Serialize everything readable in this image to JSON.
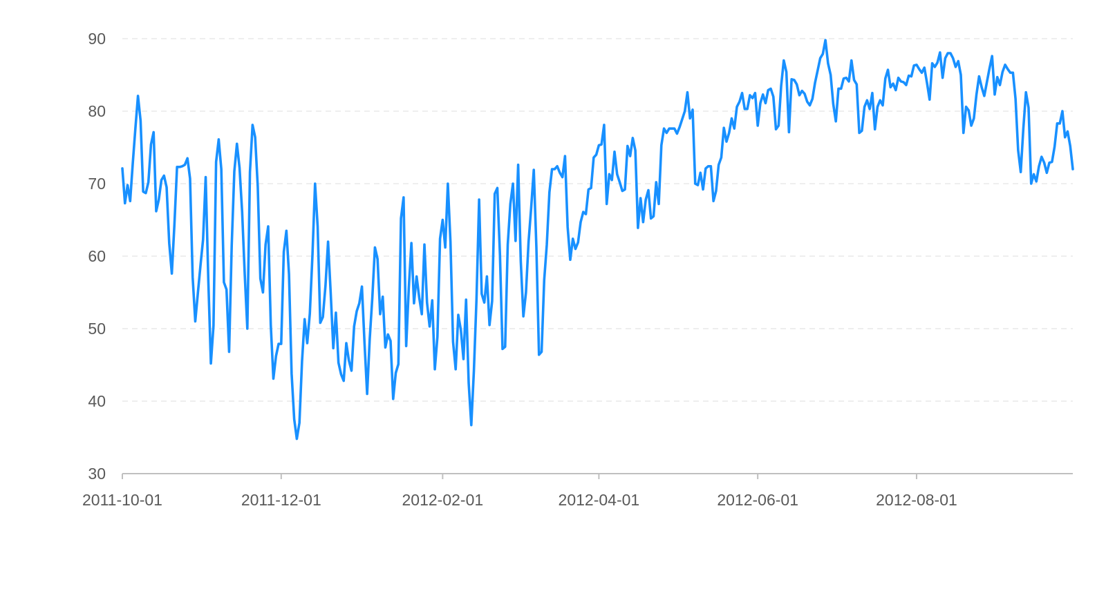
{
  "chart_data": {
    "type": "line",
    "title": "",
    "xlabel": "",
    "ylabel": "",
    "ylim": [
      30,
      90
    ],
    "xlim": [
      "2011-10-01",
      "2012-09-30"
    ],
    "y_ticks": [
      30,
      40,
      50,
      60,
      70,
      80,
      90
    ],
    "x_ticks": [
      "2011-10-01",
      "2011-12-01",
      "2012-02-01",
      "2012-04-01",
      "2012-06-01",
      "2012-08-01"
    ],
    "grid": "horizontal dashed",
    "legend": "none",
    "line_color": "#1890ff",
    "x_start": "2011-10-01",
    "x_step": "1 day",
    "y": [
      72.1,
      67.3,
      69.8,
      67.6,
      72.8,
      77.6,
      82.1,
      78.7,
      68.9,
      68.7,
      70.2,
      75.4,
      77.1,
      66.2,
      67.8,
      70.5,
      71.1,
      69.5,
      61.8,
      57.6,
      64.4,
      72.3,
      72.3,
      72.4,
      72.6,
      73.5,
      70.7,
      57.1,
      51.0,
      54.9,
      58.7,
      62.3,
      70.9,
      56.8,
      45.2,
      50.4,
      73.0,
      76.1,
      72.0,
      56.4,
      55.4,
      46.8,
      61.5,
      71.7,
      75.5,
      72.2,
      66.1,
      57.5,
      50.0,
      71.6,
      78.1,
      76.4,
      69.6,
      56.9,
      55.0,
      61.6,
      64.1,
      50.5,
      43.1,
      46.2,
      47.9,
      47.9,
      60.6,
      63.5,
      57.5,
      43.8,
      37.5,
      34.8,
      37.0,
      45.5,
      51.3,
      48.0,
      52.1,
      60.1,
      70.0,
      64.1,
      50.8,
      51.6,
      55.9,
      62.0,
      55.0,
      47.3,
      52.2,
      45.3,
      43.7,
      42.8,
      48.0,
      45.6,
      44.2,
      50.3,
      52.4,
      53.5,
      55.8,
      48.0,
      41.0,
      48.6,
      54.3,
      61.2,
      59.6,
      52.0,
      54.4,
      47.4,
      49.2,
      48.3,
      40.3,
      43.9,
      45.1,
      65.2,
      68.1,
      47.6,
      55.6,
      61.8,
      53.5,
      57.2,
      54.3,
      52.0,
      61.6,
      53.6,
      50.3,
      53.9,
      44.4,
      48.9,
      62.4,
      65.0,
      61.2,
      70.0,
      62.0,
      48.2,
      44.4,
      51.9,
      49.8,
      45.8,
      54.0,
      42.5,
      36.7,
      44.2,
      54.1,
      67.8,
      54.8,
      53.6,
      57.2,
      50.5,
      53.8,
      68.6,
      69.4,
      60.3,
      47.2,
      47.5,
      61.6,
      67.2,
      70.0,
      62.1,
      72.6,
      59.3,
      51.7,
      55.0,
      62.0,
      66.7,
      71.9,
      61.2,
      46.4,
      46.8,
      56.7,
      61.6,
      68.8,
      72.0,
      72.0,
      72.4,
      71.5,
      70.9,
      73.8,
      64.0,
      59.5,
      62.4,
      61.0,
      61.9,
      64.7,
      66.1,
      65.8,
      69.2,
      69.4,
      73.6,
      74.0,
      75.3,
      75.4,
      78.1,
      67.2,
      71.3,
      70.5,
      74.4,
      71.3,
      70.2,
      69.0,
      69.2,
      75.2,
      73.8,
      76.3,
      74.6,
      63.9,
      68.0,
      64.7,
      67.8,
      69.1,
      65.2,
      65.5,
      70.2,
      67.2,
      75.3,
      77.6,
      77.0,
      77.6,
      77.6,
      77.6,
      76.9,
      77.8,
      78.9,
      80.0,
      82.6,
      79.0,
      80.2,
      70.0,
      69.8,
      71.5,
      69.2,
      72.1,
      72.4,
      72.4,
      67.6,
      69.0,
      72.6,
      73.6,
      77.7,
      75.8,
      77.0,
      79.0,
      77.6,
      80.6,
      81.3,
      82.5,
      80.3,
      80.3,
      82.2,
      81.8,
      82.5,
      78.0,
      81.1,
      82.3,
      81.1,
      82.9,
      83.1,
      82.0,
      77.5,
      78.0,
      83.5,
      87.0,
      85.4,
      77.1,
      84.4,
      84.3,
      83.7,
      82.2,
      82.8,
      82.4,
      81.3,
      80.8,
      81.7,
      83.9,
      85.6,
      87.3,
      87.9,
      89.8,
      86.6,
      85.0,
      81.0,
      78.6,
      83.1,
      83.1,
      84.5,
      84.6,
      84.1,
      87.0,
      84.3,
      83.7,
      77.0,
      77.3,
      80.6,
      81.5,
      80.3,
      82.5,
      77.5,
      80.6,
      81.5,
      80.8,
      84.5,
      85.7,
      83.3,
      83.8,
      82.9,
      84.6,
      84.1,
      84.0,
      83.6,
      84.9,
      84.8,
      86.3,
      86.4,
      85.8,
      85.3,
      86.0,
      83.9,
      81.6,
      86.6,
      86.1,
      86.7,
      88.1,
      84.6,
      87.3,
      88.0,
      88.0,
      87.3,
      86.1,
      86.9,
      85.0,
      77.0,
      80.6,
      80.1,
      78.0,
      79.0,
      82.3,
      84.8,
      83.3,
      82.1,
      84.0,
      85.9,
      87.6,
      82.3,
      84.7,
      83.6,
      85.4,
      86.4,
      85.8,
      85.3,
      85.3,
      81.7,
      74.6,
      71.6,
      77.6,
      82.6,
      80.5,
      70.0,
      71.3,
      70.3,
      72.4,
      73.7,
      72.9,
      71.5,
      72.9,
      73.0,
      75.1,
      78.3,
      78.3,
      80.0,
      76.4,
      77.2,
      75.2,
      72.0
    ]
  }
}
